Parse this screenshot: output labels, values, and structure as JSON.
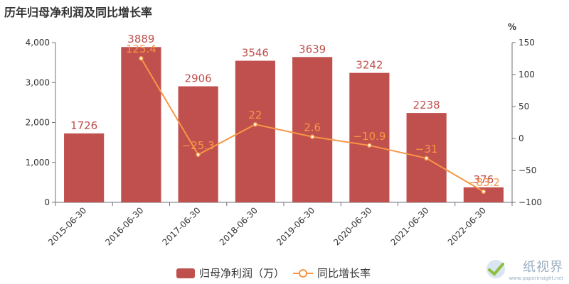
{
  "title": "历年归母净利润及同比增长率",
  "watermark": {
    "name": "纸视界",
    "url": "www.paperinsight.net"
  },
  "colors": {
    "bar": "#c0504d",
    "line": "#f79646",
    "axis": "#6e7079",
    "text": "#333333"
  },
  "chart_data": {
    "type": "bar",
    "categories": [
      "2015-06-30",
      "2016-06-30",
      "2017-06-30",
      "2018-06-30",
      "2019-06-30",
      "2020-06-30",
      "2021-06-30",
      "2022-06-30"
    ],
    "series": [
      {
        "name": "归母净利润（万）",
        "type": "bar",
        "axis": "left",
        "values": [
          1726,
          3889,
          2906,
          3546,
          3639,
          3242,
          2238,
          376
        ],
        "labels": [
          "1726",
          "3889",
          "2906",
          "3546",
          "3639",
          "3242",
          "2238",
          "376"
        ]
      },
      {
        "name": "同比增长率",
        "type": "line",
        "axis": "right",
        "values": [
          null,
          125.4,
          -25.3,
          22,
          2.6,
          -10.9,
          -31,
          -83.2
        ],
        "labels": [
          "",
          "125.4",
          "−25.3",
          "22",
          "2.6",
          "−10.9",
          "−31",
          "−83.2"
        ]
      }
    ],
    "y_left": {
      "lim": [
        0,
        4000
      ],
      "ticks": [
        "0",
        "1,000",
        "2,000",
        "3,000",
        "4,000"
      ]
    },
    "y_right": {
      "lim": [
        -100,
        150
      ],
      "ticks": [
        "−100",
        "−50",
        "0",
        "50",
        "100",
        "150"
      ],
      "label": "%"
    },
    "legend": "bottom-center"
  }
}
